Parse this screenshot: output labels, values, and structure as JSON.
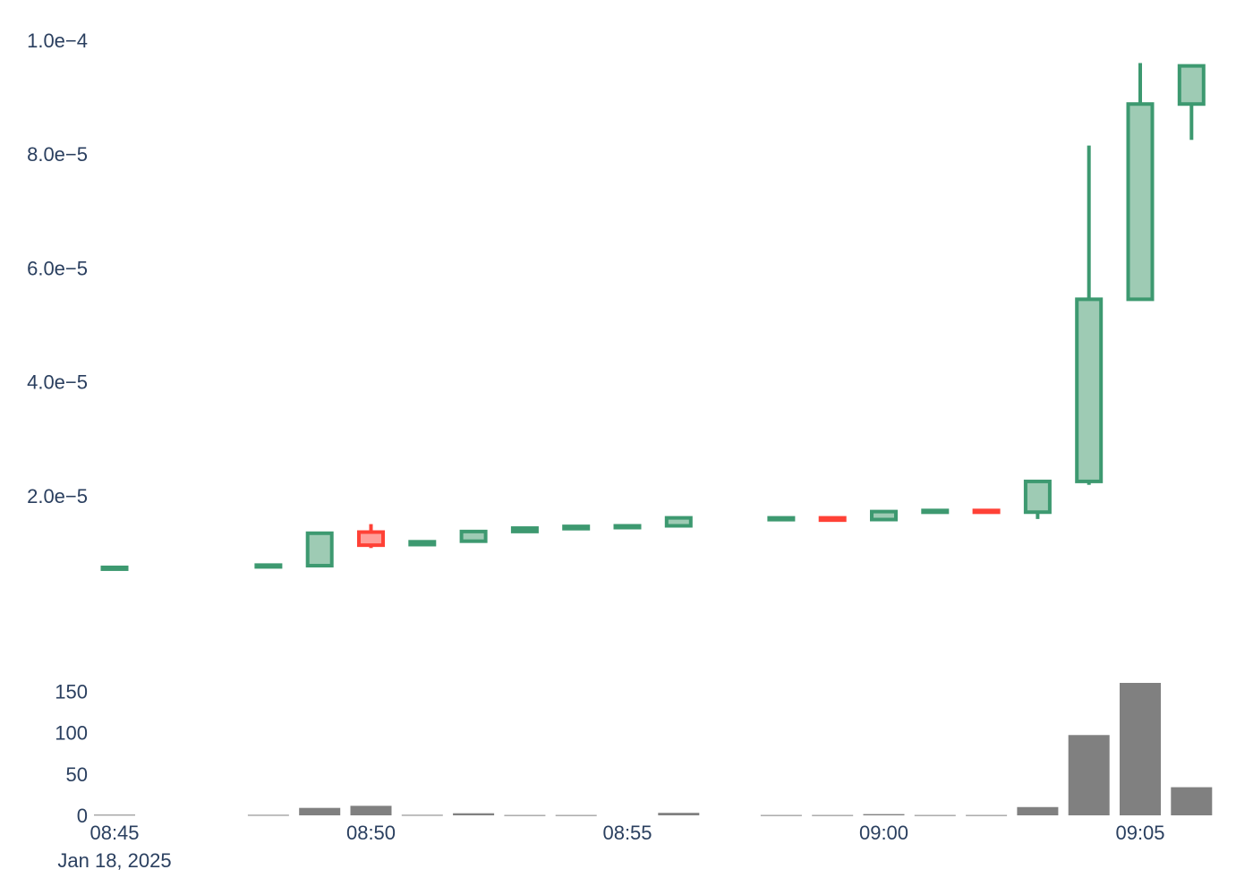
{
  "chart_data": [
    {
      "type": "candlestick",
      "x_type": "time",
      "date": "Jan 18, 2025",
      "x_ticks": [
        "08:45",
        "08:50",
        "08:55",
        "09:00",
        "09:05"
      ],
      "y_ticks": [
        "2.0e−5",
        "4.0e−5",
        "6.0e−5",
        "8.0e−5",
        "1.0e−4"
      ],
      "ylim": [
        0,
        0.000105
      ],
      "increasing_color": "#3d9970",
      "increasing_fill": "#9ecbb4",
      "decreasing_color": "#ff4136",
      "decreasing_fill": "#ff9f9a",
      "candles": [
        {
          "time": "08:45",
          "open": 7.3e-06,
          "high": 7.4e-06,
          "low": 7.1e-06,
          "close": 7.4e-06
        },
        {
          "time": "08:48",
          "open": 7.6e-06,
          "high": 7.8e-06,
          "low": 7.5e-06,
          "close": 7.8e-06
        },
        {
          "time": "08:49",
          "open": 7.7e-06,
          "high": 1.35e-05,
          "low": 7.7e-06,
          "close": 1.34e-05
        },
        {
          "time": "08:50",
          "open": 1.36e-05,
          "high": 1.5e-05,
          "low": 1.08e-05,
          "close": 1.13e-05
        },
        {
          "time": "08:51",
          "open": 1.14e-05,
          "high": 1.2e-05,
          "low": 1.14e-05,
          "close": 1.19e-05
        },
        {
          "time": "08:52",
          "open": 1.2e-05,
          "high": 1.38e-05,
          "low": 1.2e-05,
          "close": 1.37e-05
        },
        {
          "time": "08:53",
          "open": 1.37e-05,
          "high": 1.44e-05,
          "low": 1.37e-05,
          "close": 1.43e-05
        },
        {
          "time": "08:54",
          "open": 1.42e-05,
          "high": 1.46e-05,
          "low": 1.42e-05,
          "close": 1.46e-05
        },
        {
          "time": "08:55",
          "open": 1.44e-05,
          "high": 1.48e-05,
          "low": 1.44e-05,
          "close": 1.47e-05
        },
        {
          "time": "08:56",
          "open": 1.47e-05,
          "high": 1.62e-05,
          "low": 1.47e-05,
          "close": 1.61e-05
        },
        {
          "time": "08:58",
          "open": 1.59e-05,
          "high": 1.62e-05,
          "low": 1.59e-05,
          "close": 1.61e-05
        },
        {
          "time": "08:59",
          "open": 1.61e-05,
          "high": 1.61e-05,
          "low": 1.57e-05,
          "close": 1.57e-05
        },
        {
          "time": "09:00",
          "open": 1.58e-05,
          "high": 1.73e-05,
          "low": 1.58e-05,
          "close": 1.72e-05
        },
        {
          "time": "09:01",
          "open": 1.71e-05,
          "high": 1.74e-05,
          "low": 1.71e-05,
          "close": 1.74e-05
        },
        {
          "time": "09:02",
          "open": 1.74e-05,
          "high": 1.74e-05,
          "low": 1.7e-05,
          "close": 1.71e-05
        },
        {
          "time": "09:03",
          "open": 1.71e-05,
          "high": 2.26e-05,
          "low": 1.59e-05,
          "close": 2.25e-05
        },
        {
          "time": "09:04",
          "open": 2.25e-05,
          "high": 8.15e-05,
          "low": 2.19e-05,
          "close": 5.45e-05
        },
        {
          "time": "09:05",
          "open": 5.45e-05,
          "high": 9.6e-05,
          "low": 5.45e-05,
          "close": 8.88e-05
        },
        {
          "time": "09:06",
          "open": 8.88e-05,
          "high": 9.55e-05,
          "low": 8.25e-05,
          "close": 9.55e-05
        }
      ]
    },
    {
      "type": "bar",
      "bar_color": "#808080",
      "y_ticks": [
        "0",
        "50",
        "100",
        "150"
      ],
      "ylim": [
        0,
        160
      ],
      "volumes": [
        {
          "time": "08:45",
          "volume": 0.8
        },
        {
          "time": "08:48",
          "volume": 0.6
        },
        {
          "time": "08:49",
          "volume": 9
        },
        {
          "time": "08:50",
          "volume": 11.5
        },
        {
          "time": "08:51",
          "volume": 0.6
        },
        {
          "time": "08:52",
          "volume": 2.5
        },
        {
          "time": "08:53",
          "volume": 0.4
        },
        {
          "time": "08:54",
          "volume": 0.4
        },
        {
          "time": "08:56",
          "volume": 3
        },
        {
          "time": "08:58",
          "volume": 0.4
        },
        {
          "time": "08:59",
          "volume": 0.4
        },
        {
          "time": "09:00",
          "volume": 1.5
        },
        {
          "time": "09:01",
          "volume": 0.4
        },
        {
          "time": "09:02",
          "volume": 0.4
        },
        {
          "time": "09:03",
          "volume": 10
        },
        {
          "time": "09:04",
          "volume": 97
        },
        {
          "time": "09:05",
          "volume": 160
        },
        {
          "time": "09:06",
          "volume": 34
        }
      ]
    }
  ]
}
